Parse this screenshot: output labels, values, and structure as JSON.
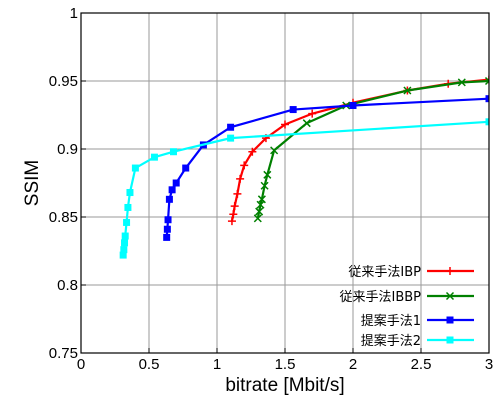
{
  "chart_data": {
    "type": "line",
    "xlabel": "bitrate [Mbit/s]",
    "ylabel": "SSIM",
    "xlim": [
      0,
      3
    ],
    "ylim": [
      0.75,
      1
    ],
    "xticks": [
      "0",
      "0.5",
      "1",
      "1.5",
      "2",
      "2.5",
      "3"
    ],
    "yticks": [
      "0.75",
      "0.8",
      "0.85",
      "0.9",
      "0.95",
      "1"
    ],
    "xtick_values": [
      0,
      0.5,
      1,
      1.5,
      2,
      2.5,
      3
    ],
    "ytick_values": [
      0.75,
      0.8,
      0.85,
      0.9,
      0.95,
      1
    ],
    "grid": true,
    "legend_position": "bottom-right",
    "series": [
      {
        "name": "従来手法IBP",
        "color": "#ff0000",
        "marker": "plus",
        "x": [
          1.11,
          1.12,
          1.13,
          1.15,
          1.17,
          1.2,
          1.26,
          1.36,
          1.5,
          1.7,
          2.0,
          2.4,
          2.7,
          3.0
        ],
        "y": [
          0.847,
          0.852,
          0.858,
          0.867,
          0.878,
          0.888,
          0.898,
          0.908,
          0.918,
          0.926,
          0.934,
          0.943,
          0.948,
          0.951
        ]
      },
      {
        "name": "従来手法IBBP",
        "color": "#008000",
        "marker": "x",
        "x": [
          1.3,
          1.31,
          1.32,
          1.33,
          1.35,
          1.37,
          1.42,
          1.66,
          1.95,
          2.4,
          2.8,
          3.0
        ],
        "y": [
          0.849,
          0.854,
          0.859,
          0.863,
          0.873,
          0.881,
          0.899,
          0.919,
          0.932,
          0.943,
          0.949,
          0.95
        ]
      },
      {
        "name": "提案手法1",
        "color": "#0000ff",
        "marker": "square",
        "x": [
          0.63,
          0.635,
          0.64,
          0.65,
          0.67,
          0.7,
          0.77,
          0.9,
          1.1,
          1.56,
          2.0,
          3.0
        ],
        "y": [
          0.835,
          0.841,
          0.848,
          0.863,
          0.87,
          0.875,
          0.886,
          0.903,
          0.916,
          0.929,
          0.932,
          0.937
        ]
      },
      {
        "name": "提案手法2",
        "color": "#00ffff",
        "marker": "square",
        "x": [
          0.31,
          0.315,
          0.32,
          0.325,
          0.335,
          0.345,
          0.36,
          0.4,
          0.54,
          0.68,
          1.1,
          3.0
        ],
        "y": [
          0.822,
          0.826,
          0.831,
          0.836,
          0.846,
          0.857,
          0.868,
          0.886,
          0.894,
          0.898,
          0.908,
          0.92
        ]
      }
    ]
  }
}
